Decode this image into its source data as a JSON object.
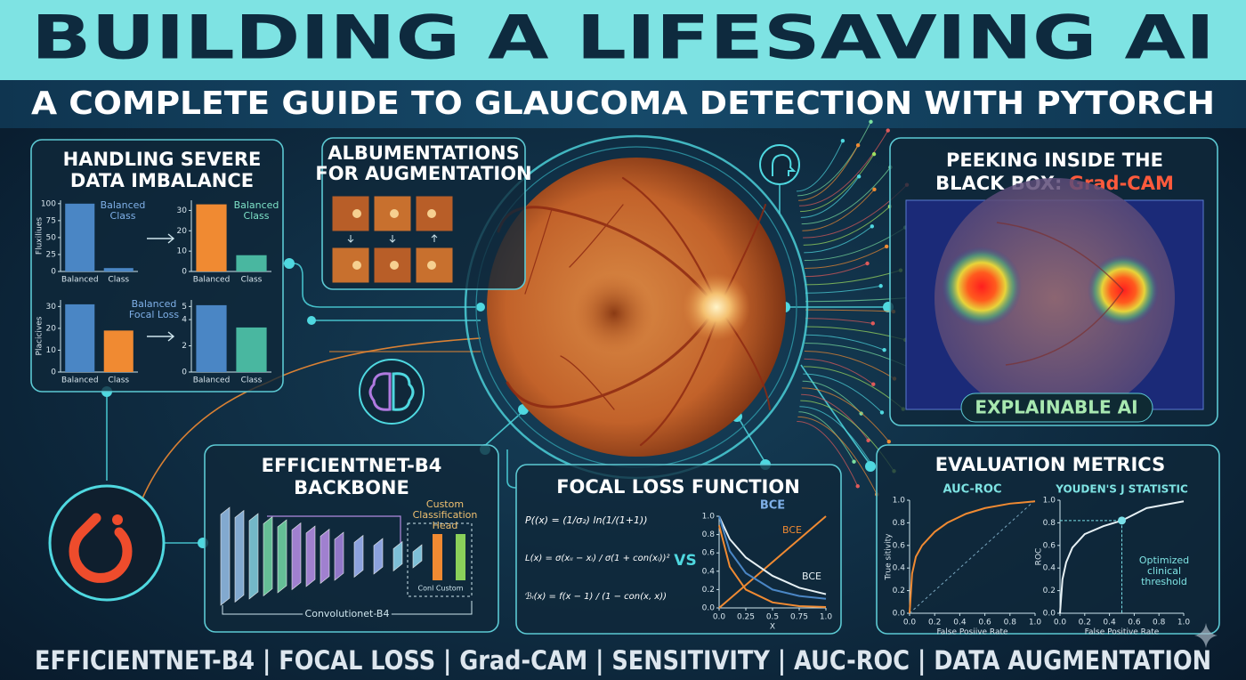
{
  "header": {
    "title": "BUILDING A LIFESAVING AI",
    "subtitle": "A COMPLETE GUIDE TO GLAUCOMA DETECTION WITH PYTORCH"
  },
  "imbalance": {
    "title_lines": [
      "HANDLING SEVERE",
      "DATA IMBALANCE"
    ],
    "charts": [
      {
        "type": "bar",
        "y_label": "Fluxiliues",
        "annotation_lines": [
          "Balanced",
          "Class"
        ],
        "categories": [
          "Balanced",
          "Class"
        ],
        "values": [
          100,
          5
        ],
        "colors": [
          "#4a86c5",
          "#4a86c5"
        ],
        "ylim": [
          0,
          105
        ],
        "yticks": [
          0,
          25,
          50,
          75,
          100
        ]
      },
      {
        "type": "bar",
        "annotation_lines": [
          "Balanced",
          "Class"
        ],
        "categories": [
          "Balanced",
          "Class"
        ],
        "values": [
          33,
          8
        ],
        "colors": [
          "#f08a32",
          "#49b7a0"
        ],
        "ylim": [
          0,
          35
        ],
        "yticks": [
          0,
          10,
          20,
          30
        ]
      },
      {
        "type": "bar",
        "y_label": "Placicives",
        "annotation_lines": [
          "Balanced",
          "Focal Loss"
        ],
        "categories": [
          "Balanced",
          "Class"
        ],
        "values": [
          31,
          19
        ],
        "colors": [
          "#4a86c5",
          "#f08a32"
        ],
        "ylim": [
          0,
          33
        ],
        "yticks": [
          0,
          10,
          20,
          30
        ]
      },
      {
        "type": "bar",
        "categories": [
          "Balanced",
          "Class"
        ],
        "values": [
          5.1,
          3.4
        ],
        "colors": [
          "#4a86c5",
          "#49b7a0"
        ],
        "ylim": [
          0,
          5.5
        ],
        "yticks": [
          0,
          2,
          4,
          5
        ]
      }
    ]
  },
  "augmentation": {
    "title_lines": [
      "ALBUMENTATIONS",
      "FOR AUGMENTATION"
    ]
  },
  "gradcam": {
    "title_lines": [
      "PEEKING INSIDE THE",
      "BLACK BOX:"
    ],
    "highlight": "Grad-CAM",
    "badge": "EXPLAINABLE AI"
  },
  "backbone": {
    "title_lines": [
      "EFFICIENTNET-B4",
      "BACKBONE"
    ],
    "head_label_lines": [
      "Custom",
      "Classification",
      "Head"
    ],
    "head_caption": "Conl Custom",
    "base_caption": "Convolutionet-B4"
  },
  "focal_loss": {
    "title": "FOCAL LOSS FUNCTION",
    "formulas": [
      "P((x) = (1/σ₂) ln(1/(1+1))",
      "L(x) = σ(xᵢᵢ − xᵢ) / σ(1 + con(xᵢ))²",
      "ℬᵢ(x) = f(x − 1) / (1 − con(x, x))"
    ],
    "vs": "VS",
    "chart": {
      "type": "line",
      "title": "BCE",
      "x_label": "X",
      "xlim": [
        0,
        1
      ],
      "ylim": [
        0,
        1
      ],
      "xticks": [
        {
          "value": 0,
          "label": "0.0"
        },
        0.25,
        {
          "value": 0.5,
          "label": "0.5"
        },
        0.75,
        {
          "value": 1,
          "label": "1.0"
        }
      ],
      "yticks": [
        {
          "value": 0,
          "label": "0.0"
        },
        0.2,
        0.4,
        0.6,
        0.8,
        {
          "value": 1,
          "label": "1.0"
        }
      ],
      "series": [
        {
          "name": "BCE",
          "color": "#f08a32",
          "x": [
            0,
            0.25,
            0.5,
            0.75,
            1
          ],
          "values": [
            0,
            0.25,
            0.5,
            0.75,
            1
          ]
        },
        {
          "name": "BCE",
          "color": "#e6f0f4",
          "x": [
            0,
            0.1,
            0.25,
            0.5,
            0.75,
            1
          ],
          "values": [
            1,
            0.75,
            0.55,
            0.35,
            0.22,
            0.15
          ]
        },
        {
          "color": "#4a86c5",
          "x": [
            0,
            0.1,
            0.25,
            0.5,
            0.75,
            1
          ],
          "values": [
            1,
            0.62,
            0.38,
            0.2,
            0.13,
            0.1
          ]
        },
        {
          "color": "#f08a32",
          "x": [
            0,
            0.1,
            0.25,
            0.5,
            0.75,
            1
          ],
          "values": [
            0.9,
            0.45,
            0.2,
            0.06,
            0.02,
            0.01
          ]
        }
      ]
    }
  },
  "metrics": {
    "title": "EVALUATION METRICS",
    "charts": [
      {
        "type": "line",
        "title": "AUC-ROC",
        "y_label": "True sitivity",
        "x_label": "False Posiive Rate",
        "xlim": [
          0,
          1
        ],
        "ylim": [
          0,
          1
        ],
        "xticks": [
          {
            "value": 0,
            "label": "0.0"
          },
          0.2,
          0.4,
          0.6,
          0.8,
          {
            "value": 1,
            "label": "1.0"
          }
        ],
        "yticks": [
          {
            "value": 0,
            "label": "0.0"
          },
          0.2,
          0.4,
          0.6,
          0.8,
          {
            "value": 1,
            "label": "1.0"
          }
        ],
        "series": [
          {
            "color": "#f08a32",
            "x": [
              0,
              0.02,
              0.05,
              0.1,
              0.2,
              0.3,
              0.45,
              0.6,
              0.8,
              1
            ],
            "values": [
              0,
              0.35,
              0.5,
              0.6,
              0.72,
              0.8,
              0.88,
              0.93,
              0.97,
              0.99
            ]
          }
        ]
      },
      {
        "type": "line",
        "title": "YOUDEN'S J STATISTIC",
        "y_label": "ROC",
        "x_label": "False Positive Rate",
        "annotation_lines": [
          "Optimized",
          "clinical",
          "threshold"
        ],
        "xlim": [
          0,
          1
        ],
        "ylim": [
          0,
          1
        ],
        "xticks": [
          {
            "value": 0,
            "label": "0.0"
          },
          0.2,
          0.4,
          0.6,
          0.8,
          {
            "value": 1,
            "label": "1.0"
          }
        ],
        "yticks": [
          {
            "value": 0,
            "label": "0.0"
          },
          0.2,
          0.4,
          0.6,
          0.8,
          {
            "value": 1,
            "label": "1.0"
          }
        ],
        "series": [
          {
            "color": "#e6f0f4",
            "x": [
              0,
              0.02,
              0.05,
              0.1,
              0.2,
              0.35,
              0.5,
              0.7,
              1
            ],
            "values": [
              0,
              0.3,
              0.45,
              0.58,
              0.7,
              0.77,
              0.82,
              0.93,
              0.99
            ]
          }
        ],
        "marker": {
          "x": 0.5,
          "y": 0.82
        }
      }
    ]
  },
  "footer": "EFFICIENTNET-B4 | FOCAL LOSS | Grad-CAM | SENSITIVITY | AUC-ROC | DATA AUGMENTATION"
}
